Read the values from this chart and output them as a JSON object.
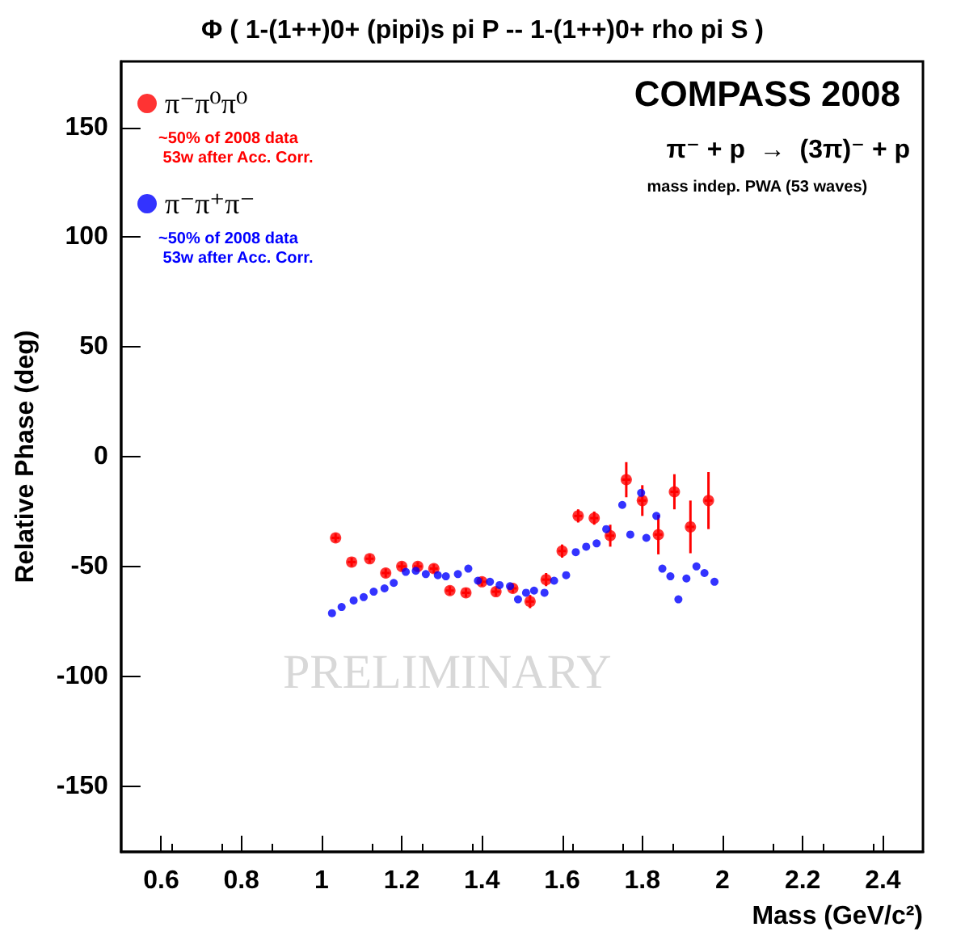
{
  "chart_data": {
    "type": "scatter",
    "title": "Φ ( 1-(1++)0+ (pipi)s pi P -- 1-(1++)0+ rho pi S )",
    "xlabel": "Mass (GeV/c²)",
    "ylabel": "Relative Phase (deg)",
    "xlim": [
      0.5,
      2.5
    ],
    "xticks": [
      0.6,
      0.8,
      1,
      1.2,
      1.4,
      1.6,
      1.8,
      2,
      2.2,
      2.4
    ],
    "ylim": [
      -180,
      180
    ],
    "yticks": [
      -150,
      -100,
      -50,
      0,
      50,
      100,
      150
    ],
    "grid": false,
    "legend": "top left",
    "marker": "circle",
    "annotations": [
      "~50% of 2008 data\n 53w after Acc. Corr.",
      "~50% of 2008 data\n 53w after Acc. Corr.",
      "COMPASS 2008",
      "π⁻ + p  →  (3π)⁻ + p",
      "mass indep. PWA (53 waves)",
      "PRELIMINARY"
    ],
    "series": [
      {
        "name": "π⁻π⁰π⁰",
        "color": "#ff0000",
        "x": [
          1.035,
          1.075,
          1.12,
          1.16,
          1.2,
          1.24,
          1.28,
          1.32,
          1.36,
          1.4,
          1.435,
          1.477,
          1.52,
          1.56,
          1.6,
          1.64,
          1.68,
          1.72,
          1.76,
          1.8,
          1.84,
          1.88,
          1.92,
          1.965
        ],
        "values": [
          -37,
          -48,
          -46.5,
          -53,
          -50,
          -50,
          -51,
          -61,
          -62,
          -57,
          -61.5,
          -60,
          -66,
          -56,
          -43,
          -27,
          -28,
          -36,
          -10.5,
          -20,
          -35.5,
          -16,
          -32,
          -20
        ],
        "errors": [
          2,
          2,
          2,
          2,
          2,
          2,
          2,
          2,
          2,
          2,
          2,
          2,
          3,
          3,
          3,
          3,
          3,
          5,
          8,
          7,
          9,
          8,
          12,
          13
        ],
        "xerrors": [
          0.01,
          0.01,
          0.01,
          0.01,
          0.01,
          0.01,
          0.01,
          0.01,
          0.01,
          0.01,
          0.01,
          0.01,
          0.01,
          0.01,
          0.01,
          0.01,
          0.01,
          0.01,
          0.01,
          0.01,
          0.01,
          0.01,
          0.01,
          0.01
        ]
      },
      {
        "name": "π⁻π⁺π⁻",
        "color": "#0000ff",
        "x": [
          1.026,
          1.05,
          1.08,
          1.105,
          1.13,
          1.157,
          1.18,
          1.21,
          1.235,
          1.26,
          1.29,
          1.31,
          1.34,
          1.366,
          1.39,
          1.42,
          1.444,
          1.47,
          1.49,
          1.51,
          1.53,
          1.556,
          1.58,
          1.61,
          1.634,
          1.66,
          1.686,
          1.71,
          1.75,
          1.77,
          1.797,
          1.81,
          1.835,
          1.85,
          1.87,
          1.89,
          1.91,
          1.935,
          1.955,
          1.98
        ],
        "values": [
          -71.3,
          -68.5,
          -65.5,
          -64,
          -61.5,
          -60,
          -57.5,
          -52.5,
          -52,
          -53.5,
          -54,
          -54.5,
          -53.5,
          -51,
          -56.5,
          -57,
          -58.5,
          -59,
          -65,
          -62,
          -61,
          -62,
          -56.5,
          -54,
          -43.5,
          -41,
          -39.5,
          -33,
          -22,
          -35.5,
          -16.5,
          -37,
          -27,
          -51,
          -54.5,
          -65,
          -55.5,
          -50,
          -53,
          -57
        ]
      }
    ]
  }
}
